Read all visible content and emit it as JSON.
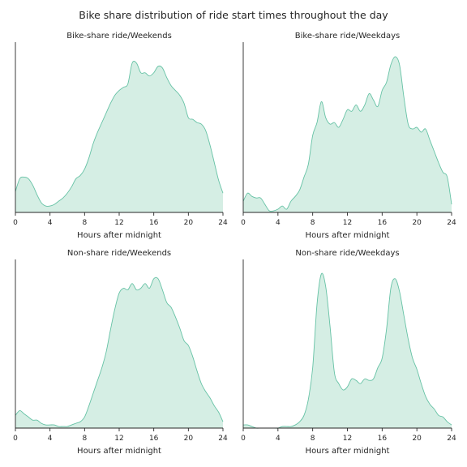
{
  "title": "Bike share distribution of ride start times throughout the day",
  "colors": {
    "fill": "#d5eee4",
    "line": "#66c2a5",
    "axis": "#262626",
    "text": "#262626"
  },
  "chart_data": [
    {
      "type": "area",
      "title": "Bike-share ride/Weekends",
      "xlabel": "Hours after midnight",
      "ylabel": "",
      "xlim": [
        0,
        24
      ],
      "ylim": [
        0,
        1.0
      ],
      "xticks": [
        "0",
        "4",
        "8",
        "12",
        "16",
        "20",
        "24"
      ],
      "grid": false,
      "x": [
        0,
        0.5,
        1,
        1.5,
        2,
        2.5,
        3,
        3.5,
        4,
        4.5,
        5,
        5.5,
        6,
        6.5,
        7,
        7.5,
        8,
        8.5,
        9,
        9.5,
        10,
        10.5,
        11,
        11.5,
        12,
        12.5,
        13,
        13.5,
        14,
        14.5,
        15,
        15.5,
        16,
        16.5,
        17,
        17.5,
        18,
        18.5,
        19,
        19.5,
        20,
        20.5,
        21,
        21.5,
        22,
        22.5,
        23,
        23.5,
        24
      ],
      "y": [
        0.13,
        0.21,
        0.22,
        0.21,
        0.17,
        0.11,
        0.06,
        0.04,
        0.04,
        0.05,
        0.07,
        0.09,
        0.12,
        0.16,
        0.21,
        0.23,
        0.27,
        0.34,
        0.43,
        0.5,
        0.56,
        0.62,
        0.68,
        0.73,
        0.76,
        0.78,
        0.8,
        0.93,
        0.93,
        0.87,
        0.87,
        0.85,
        0.87,
        0.91,
        0.9,
        0.84,
        0.79,
        0.76,
        0.73,
        0.68,
        0.59,
        0.58,
        0.56,
        0.55,
        0.51,
        0.42,
        0.31,
        0.2,
        0.12
      ]
    },
    {
      "type": "area",
      "title": "Bike-share ride/Weekdays",
      "xlabel": "Hours after midnight",
      "ylabel": "",
      "xlim": [
        0,
        24
      ],
      "ylim": [
        0,
        1.0
      ],
      "xticks": [
        "0",
        "4",
        "8",
        "12",
        "16",
        "20",
        "24"
      ],
      "grid": false,
      "x": [
        0,
        0.5,
        1,
        1.5,
        2,
        2.5,
        3,
        3.5,
        4,
        4.5,
        5,
        5.5,
        6,
        6.5,
        7,
        7.5,
        8,
        8.5,
        9,
        9.5,
        10,
        10.5,
        11,
        11.5,
        12,
        12.5,
        13,
        13.5,
        14,
        14.5,
        15,
        15.5,
        16,
        16.5,
        17,
        17.5,
        18,
        18.5,
        19,
        19.5,
        20,
        20.5,
        21,
        21.5,
        22,
        22.5,
        23,
        23.5,
        24
      ],
      "y": [
        0.07,
        0.12,
        0.1,
        0.09,
        0.09,
        0.05,
        0.01,
        0.01,
        0.02,
        0.04,
        0.02,
        0.07,
        0.1,
        0.14,
        0.22,
        0.3,
        0.48,
        0.56,
        0.69,
        0.59,
        0.55,
        0.56,
        0.53,
        0.58,
        0.64,
        0.63,
        0.67,
        0.63,
        0.67,
        0.74,
        0.7,
        0.66,
        0.76,
        0.81,
        0.92,
        0.97,
        0.92,
        0.72,
        0.55,
        0.52,
        0.53,
        0.5,
        0.52,
        0.45,
        0.38,
        0.31,
        0.25,
        0.22,
        0.05
      ]
    },
    {
      "type": "area",
      "title": "Non-share ride/Weekends",
      "xlabel": "Hours after midnight",
      "ylabel": "",
      "xlim": [
        0,
        24
      ],
      "ylim": [
        0,
        1.0
      ],
      "xticks": [
        "0",
        "4",
        "8",
        "12",
        "16",
        "20",
        "24"
      ],
      "grid": false,
      "x": [
        0,
        0.5,
        1,
        1.5,
        2,
        2.5,
        3,
        3.5,
        4,
        4.5,
        5,
        5.5,
        6,
        6.5,
        7,
        7.5,
        8,
        8.5,
        9,
        9.5,
        10,
        10.5,
        11,
        11.5,
        12,
        12.5,
        13,
        13.5,
        14,
        14.5,
        15,
        15.5,
        16,
        16.5,
        17,
        17.5,
        18,
        18.5,
        19,
        19.5,
        20,
        20.5,
        21,
        21.5,
        22,
        22.5,
        23,
        23.5,
        24
      ],
      "y": [
        0.08,
        0.11,
        0.09,
        0.07,
        0.05,
        0.05,
        0.03,
        0.02,
        0.02,
        0.02,
        0.01,
        0.01,
        0.01,
        0.02,
        0.03,
        0.04,
        0.07,
        0.14,
        0.22,
        0.3,
        0.38,
        0.48,
        0.62,
        0.75,
        0.85,
        0.88,
        0.87,
        0.91,
        0.87,
        0.88,
        0.91,
        0.88,
        0.94,
        0.94,
        0.87,
        0.79,
        0.76,
        0.7,
        0.63,
        0.55,
        0.52,
        0.45,
        0.36,
        0.28,
        0.23,
        0.19,
        0.14,
        0.1,
        0.04
      ]
    },
    {
      "type": "area",
      "title": "Non-share ride/Weekdays",
      "xlabel": "Hours after midnight",
      "ylabel": "",
      "xlim": [
        0,
        24
      ],
      "ylim": [
        0,
        1.0
      ],
      "xticks": [
        "0",
        "4",
        "8",
        "12",
        "16",
        "20",
        "24"
      ],
      "grid": false,
      "x": [
        0,
        0.5,
        1,
        1.5,
        2,
        2.5,
        3,
        3.5,
        4,
        4.5,
        5,
        5.5,
        6,
        6.5,
        7,
        7.5,
        8,
        8.5,
        9,
        9.5,
        10,
        10.5,
        11,
        11.5,
        12,
        12.5,
        13,
        13.5,
        14,
        14.5,
        15,
        15.5,
        16,
        16.5,
        17,
        17.5,
        18,
        18.5,
        19,
        19.5,
        20,
        20.5,
        21,
        21.5,
        22,
        22.5,
        23,
        23.5,
        24
      ],
      "y": [
        0.02,
        0.02,
        0.01,
        0.0,
        0.0,
        0.0,
        0.0,
        0.0,
        0.0,
        0.01,
        0.01,
        0.01,
        0.02,
        0.04,
        0.08,
        0.18,
        0.38,
        0.78,
        0.97,
        0.89,
        0.64,
        0.35,
        0.28,
        0.24,
        0.26,
        0.31,
        0.3,
        0.28,
        0.31,
        0.3,
        0.31,
        0.38,
        0.44,
        0.62,
        0.88,
        0.94,
        0.86,
        0.71,
        0.56,
        0.44,
        0.37,
        0.28,
        0.2,
        0.15,
        0.12,
        0.08,
        0.07,
        0.04,
        0.02
      ]
    }
  ]
}
